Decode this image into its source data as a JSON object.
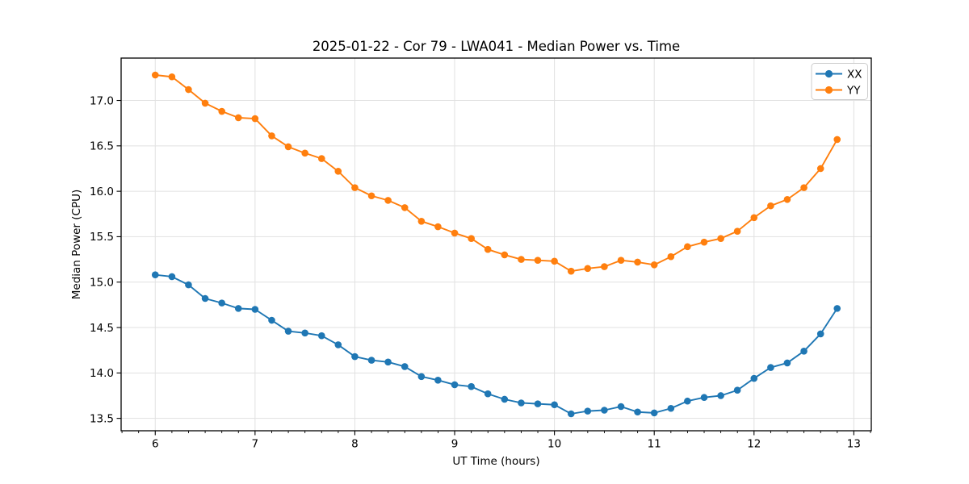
{
  "chart_data": {
    "type": "line",
    "title": "2025-01-22 - Cor 79 - LWA041 - Median Power vs. Time",
    "xlabel": "UT Time (hours)",
    "ylabel": "Median Power (CPU)",
    "xlim": [
      5.658,
      13.175
    ],
    "ylim": [
      13.3635,
      17.4665
    ],
    "x_ticks": [
      6,
      7,
      8,
      9,
      10,
      11,
      12,
      13
    ],
    "x_tick_labels": [
      "6",
      "7",
      "8",
      "9",
      "10",
      "11",
      "12",
      "13"
    ],
    "x_minor_tick_step": 0.16667,
    "y_ticks": [
      13.5,
      14.0,
      14.5,
      15.0,
      15.5,
      16.0,
      16.5,
      17.0
    ],
    "y_tick_labels": [
      "13.5",
      "14.0",
      "14.5",
      "15.0",
      "15.5",
      "16.0",
      "16.5",
      "17.0"
    ],
    "grid": true,
    "grid_color": "#e1e1e1",
    "legend_position": "top-right",
    "x": [
      6.0,
      6.167,
      6.333,
      6.5,
      6.667,
      6.833,
      7.0,
      7.167,
      7.333,
      7.5,
      7.667,
      7.833,
      8.0,
      8.167,
      8.333,
      8.5,
      8.667,
      8.833,
      9.0,
      9.167,
      9.333,
      9.5,
      9.667,
      9.833,
      10.0,
      10.167,
      10.333,
      10.5,
      10.667,
      10.833,
      11.0,
      11.167,
      11.333,
      11.5,
      11.667,
      11.833,
      12.0,
      12.167,
      12.333,
      12.5,
      12.667,
      12.833
    ],
    "series": [
      {
        "name": "XX",
        "color": "#1f77b4",
        "values": [
          15.08,
          15.06,
          14.97,
          14.82,
          14.77,
          14.71,
          14.7,
          14.58,
          14.46,
          14.44,
          14.41,
          14.31,
          14.18,
          14.14,
          14.12,
          14.07,
          13.96,
          13.92,
          13.87,
          13.85,
          13.77,
          13.71,
          13.67,
          13.66,
          13.65,
          13.55,
          13.58,
          13.59,
          13.63,
          13.57,
          13.56,
          13.61,
          13.69,
          13.73,
          13.75,
          13.81,
          13.94,
          14.06,
          14.11,
          14.24,
          14.43,
          14.71
        ]
      },
      {
        "name": "YY",
        "color": "#ff7f0e",
        "values": [
          17.28,
          17.26,
          17.12,
          16.97,
          16.88,
          16.81,
          16.8,
          16.61,
          16.49,
          16.42,
          16.36,
          16.22,
          16.04,
          15.95,
          15.9,
          15.82,
          15.67,
          15.61,
          15.54,
          15.48,
          15.36,
          15.3,
          15.25,
          15.24,
          15.23,
          15.12,
          15.15,
          15.17,
          15.24,
          15.22,
          15.19,
          15.28,
          15.39,
          15.44,
          15.48,
          15.56,
          15.71,
          15.84,
          15.91,
          16.04,
          16.25,
          16.57
        ]
      }
    ]
  }
}
